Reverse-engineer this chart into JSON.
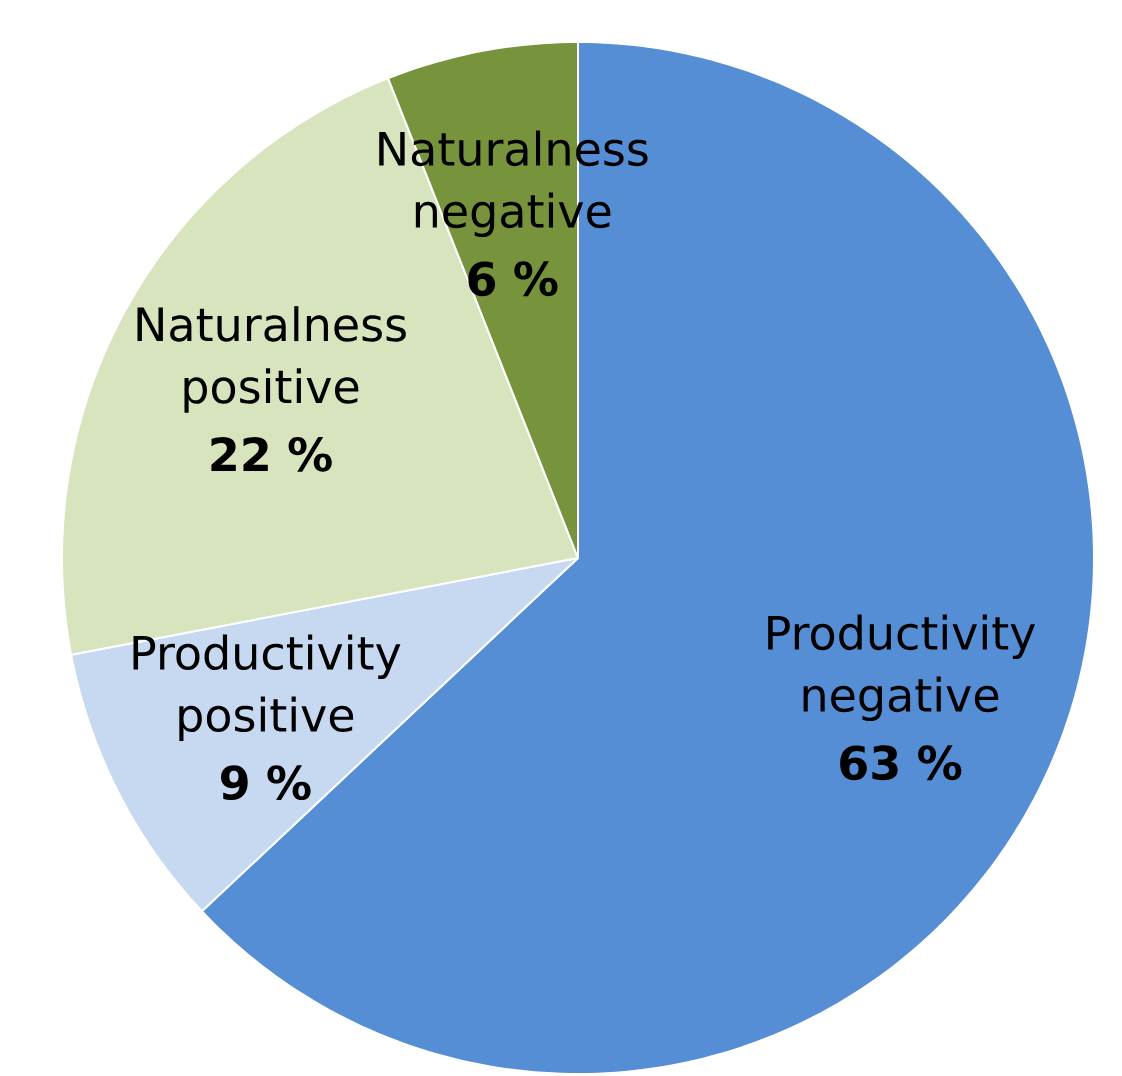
{
  "chart_data": {
    "type": "pie",
    "categories": [
      "Productivity negative",
      "Productivity positive",
      "Naturalness positive",
      "Naturalness negative"
    ],
    "values": [
      63,
      9,
      22,
      6
    ],
    "colors": [
      "#558ed5",
      "#c6d9f1",
      "#d7e4bd",
      "#77933c"
    ],
    "value_labels": [
      "63 %",
      "9 %",
      "22 %",
      "6 %"
    ]
  }
}
